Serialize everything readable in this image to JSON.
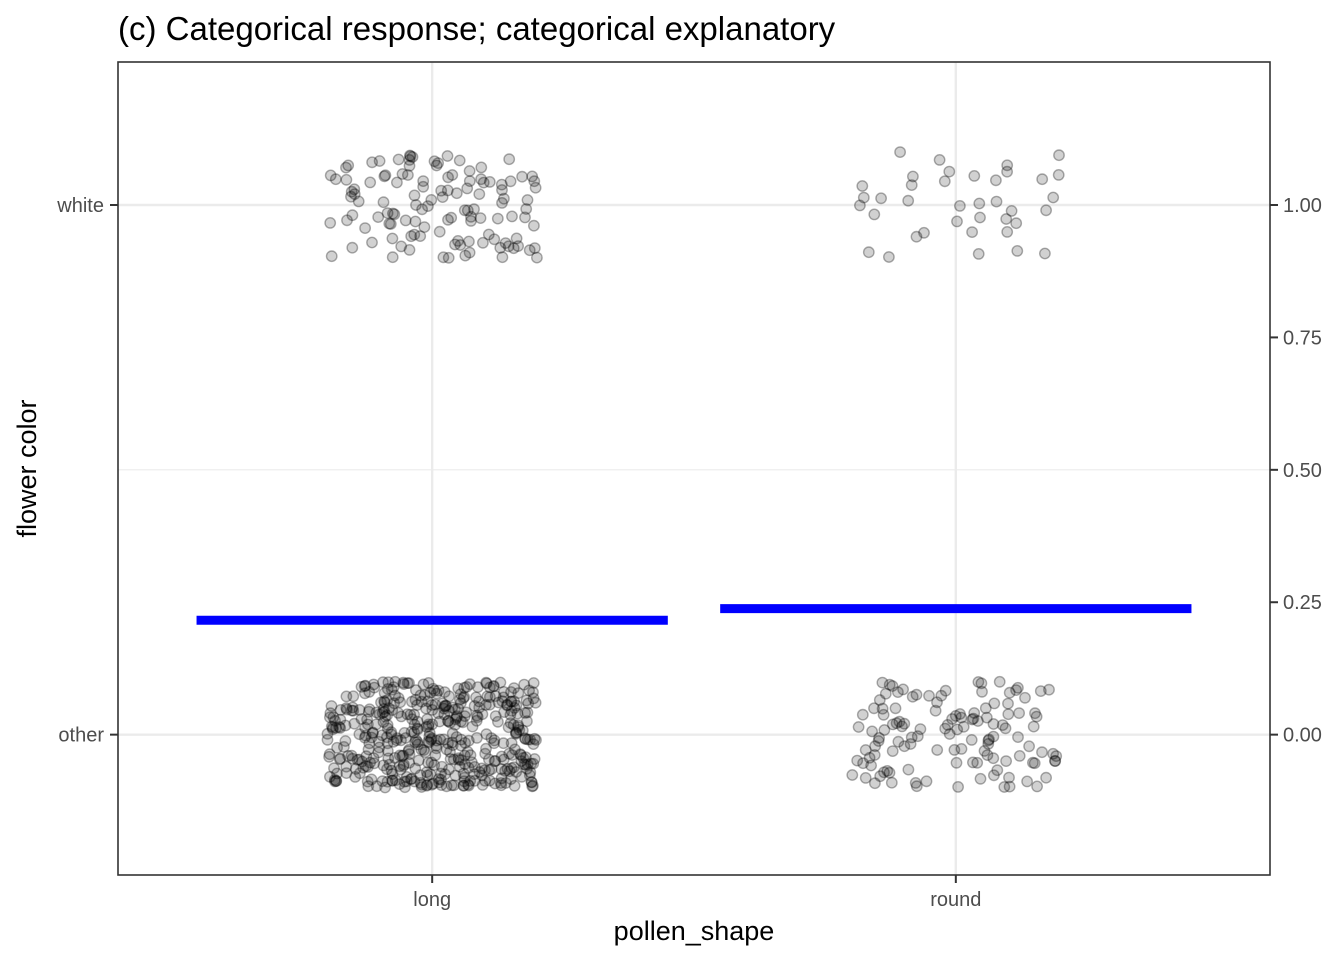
{
  "chart_data": {
    "type": "scatter",
    "title": "(c) Categorical response; categorical explanatory",
    "xlabel": "pollen_shape",
    "ylabel": "flower color",
    "x_categories": [
      "long",
      "round"
    ],
    "y_categories": [
      "other",
      "white"
    ],
    "y_category_values": [
      0,
      1
    ],
    "ylim": [
      -0.265,
      1.27
    ],
    "secondary_y_ticks": [
      "0.00",
      "0.25",
      "0.50",
      "0.75",
      "1.00"
    ],
    "jitter": {
      "width": 0.2,
      "height": 0.1
    },
    "point_counts": [
      {
        "x": "long",
        "y": "white",
        "count": 120
      },
      {
        "x": "long",
        "y": "other",
        "count": 440
      },
      {
        "x": "round",
        "y": "white",
        "count": 38
      },
      {
        "x": "round",
        "y": "other",
        "count": 125
      }
    ],
    "series": [
      {
        "type": "segment",
        "color": "#0000ff",
        "values": [
          {
            "x": "long",
            "y": 0.216
          },
          {
            "x": "round",
            "y": 0.238
          }
        ]
      }
    ],
    "grid": true,
    "legend": "none"
  }
}
